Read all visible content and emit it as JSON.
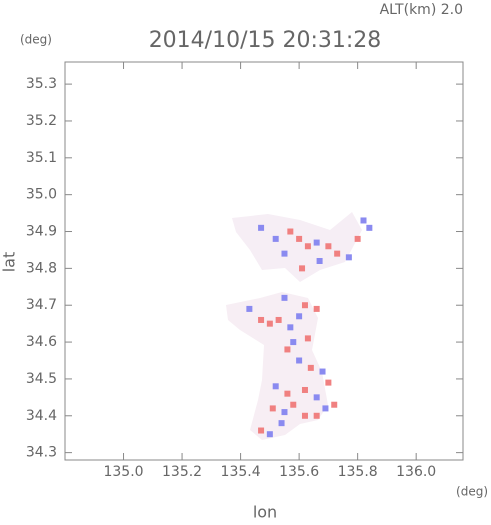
{
  "chart_data": {
    "type": "scatter",
    "title": "2014/10/15 20:31:28",
    "subtitle": "ALT(km) 2.0",
    "y_unit": "(deg)",
    "x_unit": "(deg)",
    "xlabel": "lon",
    "ylabel": "lat",
    "xlim": [
      134.8,
      136.16
    ],
    "ylim": [
      34.28,
      35.36
    ],
    "xticks": [
      {
        "value": 135.0,
        "label": "135.0"
      },
      135.2,
      135.4,
      135.6,
      135.8,
      {
        "value": 136.0,
        "label": "136.0"
      }
    ],
    "yticks": [
      34.3,
      34.4,
      34.5,
      34.6,
      34.7,
      34.8,
      34.9,
      {
        "value": 35.0,
        "label": "35.0"
      },
      35.1,
      35.2,
      35.3
    ],
    "x": [
      135.47,
      135.52,
      135.57,
      135.6,
      135.63,
      135.66,
      135.7,
      135.73,
      135.77,
      135.8,
      135.82,
      135.84,
      135.61,
      135.67,
      135.55,
      135.43,
      135.47,
      135.5,
      135.53,
      135.57,
      135.6,
      135.62,
      135.66,
      135.55,
      135.58,
      135.63,
      135.56,
      135.6,
      135.64,
      135.68,
      135.7,
      135.52,
      135.56,
      135.62,
      135.66,
      135.58,
      135.62,
      135.66,
      135.55,
      135.51,
      135.47,
      135.5,
      135.54,
      135.69,
      135.72
    ],
    "values": [
      34.91,
      34.88,
      34.9,
      34.88,
      34.86,
      34.87,
      34.86,
      34.84,
      34.83,
      34.88,
      34.93,
      34.91,
      34.8,
      34.82,
      34.84,
      34.69,
      34.66,
      34.65,
      34.66,
      34.64,
      34.67,
      34.7,
      34.69,
      34.72,
      34.6,
      34.61,
      34.58,
      34.55,
      34.53,
      34.52,
      34.49,
      34.48,
      34.46,
      34.47,
      34.45,
      34.43,
      34.4,
      34.4,
      34.41,
      34.42,
      34.36,
      34.35,
      34.38,
      34.42,
      34.43
    ],
    "colors": [
      "#8a8af0",
      "#8a8af0",
      "#f08080",
      "#f08080",
      "#f08080",
      "#8a8af0",
      "#f08080",
      "#f08080",
      "#8a8af0",
      "#f08080",
      "#8a8af0",
      "#8a8af0",
      "#f08080",
      "#8a8af0",
      "#8a8af0",
      "#8a8af0",
      "#f08080",
      "#f08080",
      "#f08080",
      "#8a8af0",
      "#8a8af0",
      "#f08080",
      "#f08080",
      "#8a8af0",
      "#8a8af0",
      "#f08080",
      "#f08080",
      "#8a8af0",
      "#f08080",
      "#8a8af0",
      "#f08080",
      "#8a8af0",
      "#f08080",
      "#f08080",
      "#8a8af0",
      "#f08080",
      "#f08080",
      "#f08080",
      "#8a8af0",
      "#f08080",
      "#f08080",
      "#8a8af0",
      "#8a8af0",
      "#8a8af0",
      "#f08080"
    ]
  }
}
